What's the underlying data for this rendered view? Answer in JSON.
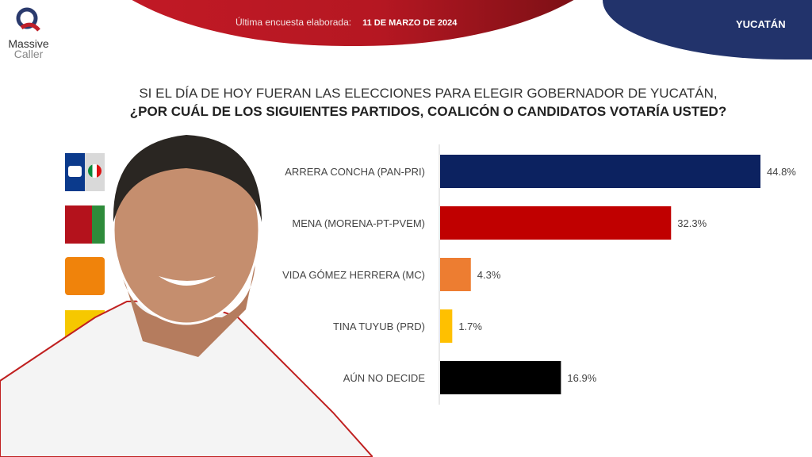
{
  "brand": {
    "name_line1": "Massive",
    "name_line2": "Caller"
  },
  "header": {
    "survey_label": "Última encuesta elaborada:",
    "survey_date": "11 DE MARZO DE 2024",
    "state": "YUCATÁN"
  },
  "question": {
    "line1": "SI EL DÍA DE HOY FUERAN LAS ELECCIONES PARA ELEGIR GOBERNADOR DE YUCATÁN,",
    "line2": "¿POR CUÁL DE LOS SIGUIENTES  PARTIDOS, COALICÓN  O CANDIDATOS  VOTARÍA USTED?"
  },
  "colors": {
    "banner_red": "#b51722",
    "banner_blue": "#22336b"
  },
  "chart_data": {
    "type": "bar",
    "orientation": "horizontal",
    "categories": [
      "ARRERA CONCHA  (PAN-PRI)",
      "MENA  (MORENA-PT-PVEM)",
      "VIDA GÓMEZ HERRERA (MC)",
      "TINA TUYUB (PRD)",
      "AÚN NO DECIDE"
    ],
    "values": [
      44.8,
      32.3,
      4.3,
      1.7,
      16.9
    ],
    "data_labels": [
      "44.8%",
      "32.3%",
      "4.3%",
      "1.7%",
      "16.9%"
    ],
    "colors": [
      "#0c2260",
      "#c00000",
      "#ed7d31",
      "#ffc000",
      "#000000"
    ],
    "xlim": [
      0,
      50
    ],
    "grid": false,
    "legend": "none"
  }
}
